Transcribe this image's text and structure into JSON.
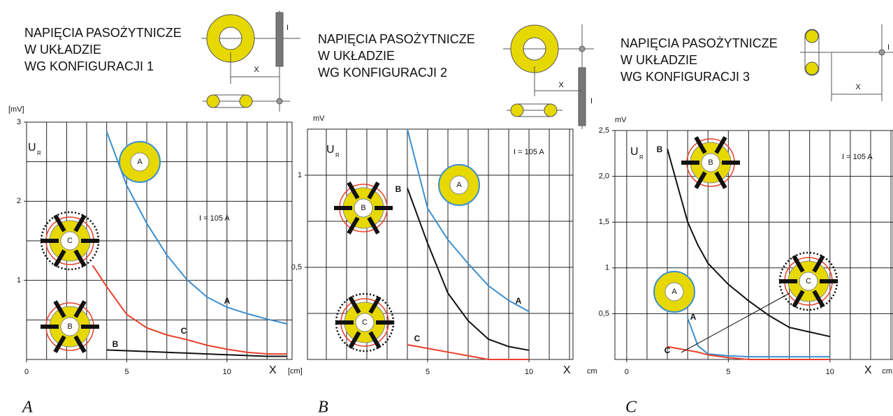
{
  "chart_data": [
    {
      "type": "line",
      "title": [
        "NAPIĘCIA PASOŻYTNICZE",
        "W UKŁADZIE",
        "WG KONFIGURACJI 1"
      ],
      "panel_label": "A",
      "y_label": "U",
      "y_label_sub": "R",
      "y_unit": "[mV]",
      "x_label": "X",
      "x_unit": "[cm]",
      "current_label": "I = 105 A",
      "diagram_labels": [
        "I",
        "X"
      ],
      "icon_labels": [
        "A",
        "C",
        "B"
      ],
      "x": [
        3.3,
        4,
        5,
        6,
        7,
        8,
        9,
        10,
        11,
        12,
        13
      ],
      "series": [
        {
          "name": "A",
          "color": "#3b8fd1",
          "values": [
            null,
            2.88,
            2.2,
            1.72,
            1.32,
            1.01,
            0.79,
            0.66,
            0.58,
            0.51,
            0.45
          ]
        },
        {
          "name": "B",
          "color": "#111111",
          "values": [
            null,
            0.12,
            0.11,
            0.1,
            0.09,
            0.08,
            0.07,
            0.06,
            0.05,
            0.04,
            0.04
          ]
        },
        {
          "name": "C",
          "color": "#e8402a",
          "values": [
            1.19,
            0.92,
            0.57,
            0.4,
            0.31,
            0.25,
            0.18,
            0.13,
            0.09,
            0.07,
            0.07
          ]
        }
      ],
      "xlim": [
        0,
        13.25
      ],
      "ylim": [
        0,
        3
      ],
      "xticks": [
        0,
        5,
        10
      ],
      "yticks": [
        1,
        2,
        3
      ],
      "xgrid": [
        1,
        2,
        3,
        4,
        5,
        6,
        7,
        8,
        9,
        10,
        11,
        12,
        13
      ],
      "ygrid": [
        0.5,
        1,
        1.5,
        2,
        2.5
      ],
      "grid": true
    },
    {
      "type": "line",
      "title": [
        "NAPIĘCIA PASOŻYTNICZE",
        "W UKŁADZIE",
        "WG KONFIGURACJI 2"
      ],
      "panel_label": "B",
      "y_label": "U",
      "y_label_sub": "R",
      "y_unit": "mV",
      "x_label": "X",
      "x_unit": "cm",
      "current_label": "I = 105 A",
      "diagram_labels": [
        "I",
        "X"
      ],
      "icon_labels": [
        "A",
        "B",
        "C"
      ],
      "x": [
        4,
        5,
        6,
        7,
        8,
        9,
        10
      ],
      "series": [
        {
          "name": "A",
          "color": "#3b8fd1",
          "values": [
            1.25,
            0.82,
            0.65,
            0.52,
            0.4,
            0.32,
            0.26
          ]
        },
        {
          "name": "B",
          "color": "#111111",
          "values": [
            0.93,
            0.63,
            0.36,
            0.21,
            0.11,
            0.07,
            0.05
          ]
        },
        {
          "name": "C",
          "color": "#e8402a",
          "values": [
            0.08,
            0.06,
            0.04,
            0.02,
            0,
            0,
            0
          ]
        }
      ],
      "xlim": [
        -0.93,
        12.17
      ],
      "ylim": [
        0,
        1.25
      ],
      "xticks": [
        5,
        10
      ],
      "yticks": [
        {
          "value": 0.5,
          "label": "0,5"
        },
        1
      ],
      "xgrid": [
        0,
        1,
        2,
        3,
        4,
        5,
        6,
        7,
        8,
        9,
        10,
        11,
        12
      ],
      "ygrid": [
        0.25,
        0.5,
        0.75,
        1
      ],
      "grid": true
    },
    {
      "type": "line",
      "title": [
        "NAPIĘCIA PASOŻYTNICZE",
        "W UKŁADZIE",
        "WG KONFIGURACJI 3"
      ],
      "panel_label": "C",
      "y_label": "U",
      "y_label_sub": "R",
      "y_unit": "mV",
      "x_label": "X",
      "x_unit": "cm",
      "current_label": "I = 105 A",
      "diagram_labels": [
        "I",
        "X"
      ],
      "icon_labels": [
        "B",
        "A",
        "C"
      ],
      "x": [
        2,
        3,
        3.5,
        4,
        5,
        6,
        7,
        8,
        9,
        10
      ],
      "series": [
        {
          "name": "A",
          "color": "#3b8fd1",
          "values": [
            null,
            0.45,
            0.15,
            0.06,
            0.04,
            0.03,
            0.03,
            0.03,
            0.03,
            0.03
          ]
        },
        {
          "name": "B",
          "color": "#111111",
          "values": [
            2.3,
            1.5,
            1.25,
            1.05,
            0.82,
            0.64,
            0.48,
            0.35,
            0.3,
            0.25
          ]
        },
        {
          "name": "C",
          "color": "#e8402a",
          "values": [
            0.14,
            0.1,
            0.08,
            0.05,
            0.02,
            0,
            0,
            0,
            0,
            0
          ]
        }
      ],
      "xlim": [
        -0.58,
        13.1
      ],
      "ylim": [
        0,
        2.5
      ],
      "xticks": [
        0,
        5,
        10
      ],
      "yticks": [
        {
          "value": 0.5,
          "label": "0,5"
        },
        1,
        {
          "value": 1.5,
          "label": "1,5"
        },
        {
          "value": 2,
          "label": "2,0"
        },
        {
          "value": 2.5,
          "label": "2,5"
        }
      ],
      "xgrid": [
        0,
        1,
        2,
        3,
        4,
        5,
        6,
        7,
        8,
        9,
        10,
        11,
        12,
        13
      ],
      "ygrid": [
        0.5,
        1,
        1.5,
        2
      ],
      "grid": true
    }
  ]
}
